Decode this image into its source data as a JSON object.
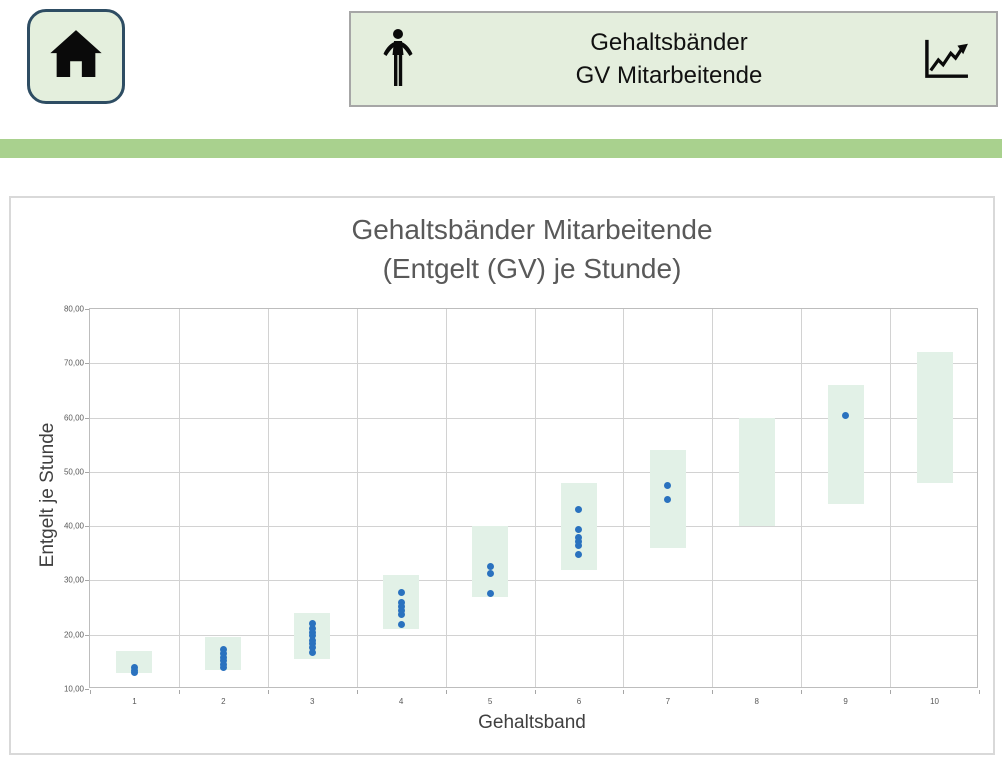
{
  "header": {
    "banner_title_line1": "Gehaltsbänder",
    "banner_title_line2": "GV Mitarbeitende"
  },
  "colors": {
    "divider_green": "#a9d18e",
    "panel_fill": "#e4eedd",
    "panel_border": "#a6a6a6",
    "home_border": "#2e4d63",
    "band_green": "#e2f1e7",
    "point_blue": "#2a72bf",
    "title_gray": "#595959"
  },
  "chart_data": {
    "type": "scatter",
    "title_line1": "Gehaltsbänder Mitarbeitende",
    "title_line2": "(Entgelt (GV) je Stunde)",
    "xlabel": "Gehaltsband",
    "ylabel": "Entgelt je Stunde",
    "ylim": [
      10,
      80
    ],
    "grid": true,
    "legend": "none",
    "yticks": [
      {
        "value": 80,
        "label": "80,00"
      },
      {
        "value": 70,
        "label": "70,00"
      },
      {
        "value": 60,
        "label": "60,00"
      },
      {
        "value": 50,
        "label": "50,00"
      },
      {
        "value": 40,
        "label": "40,00"
      },
      {
        "value": 30,
        "label": "30,00"
      },
      {
        "value": 20,
        "label": "20,00"
      },
      {
        "value": 10,
        "label": "10,00"
      }
    ],
    "categories": [
      "1",
      "2",
      "3",
      "4",
      "5",
      "6",
      "7",
      "8",
      "9",
      "10"
    ],
    "bands": {
      "color": "#e2f1e7",
      "ranges": [
        [
          13,
          17
        ],
        [
          13.5,
          19.5
        ],
        [
          15.5,
          24
        ],
        [
          21,
          31
        ],
        [
          27,
          40
        ],
        [
          32,
          48
        ],
        [
          36,
          54
        ],
        [
          40,
          60
        ],
        [
          44,
          66
        ],
        [
          48,
          72
        ]
      ]
    },
    "points": {
      "color": "#2a72bf",
      "values_by_category": [
        [
          14,
          13.5,
          13
        ],
        [
          17.2,
          16.5,
          15.8,
          15.2,
          14.6,
          14
        ],
        [
          22,
          21.2,
          20.5,
          19.8,
          19,
          18.3,
          17.6,
          16.8
        ],
        [
          27.8,
          25.9,
          25.2,
          24.5,
          23.8,
          21.8
        ],
        [
          32.5,
          31.3,
          27.6
        ],
        [
          43,
          39.3,
          38,
          37.2,
          36.4,
          34.8
        ],
        [
          47.4,
          44.9
        ],
        [],
        [
          60.3
        ],
        []
      ]
    }
  }
}
